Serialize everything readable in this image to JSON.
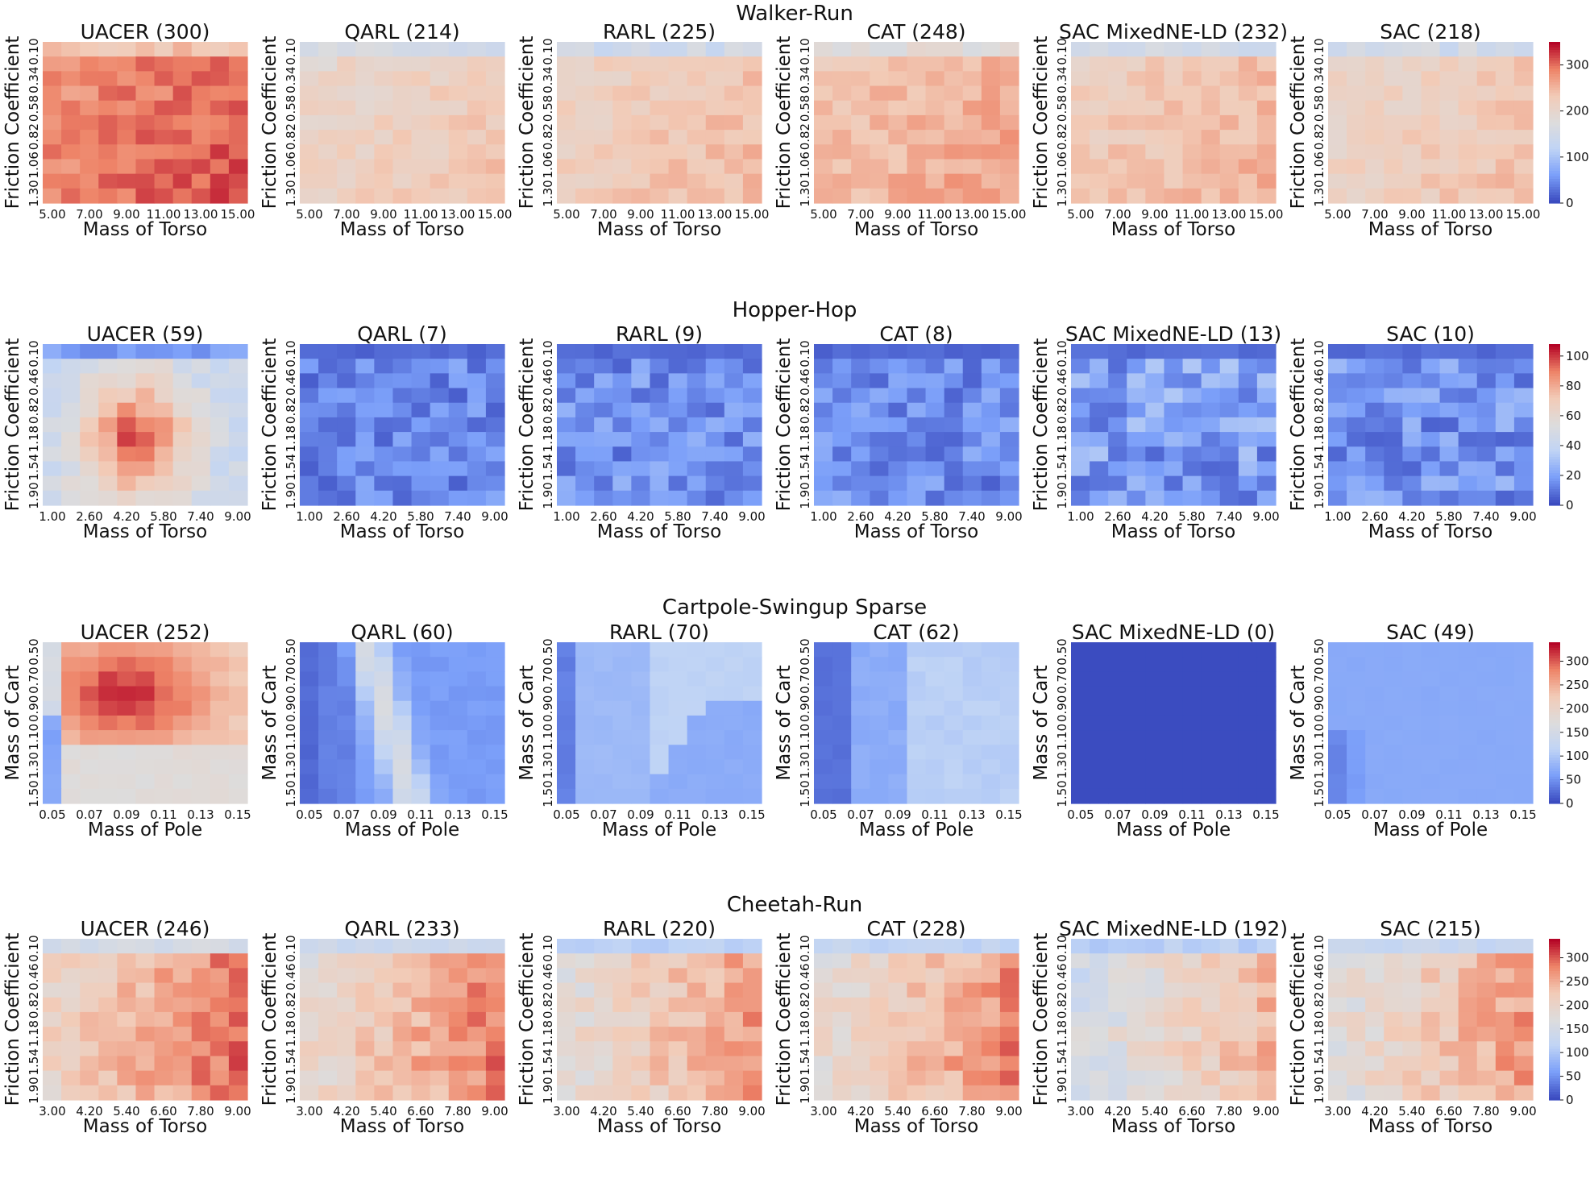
{
  "chart_data": {
    "type": "heatmap",
    "colormap": "coolwarm",
    "colormap_stops": [
      "#3b4cc0",
      "#7b9ff9",
      "#c0d4f5",
      "#dddcdc",
      "#f2cbb7",
      "#ee8468",
      "#b40426"
    ],
    "rows": [
      {
        "title": "Walker-Run",
        "ylabel": "Friction Coefficient",
        "xlabel": "Mass of Torso",
        "xticks": [
          "5.00",
          "7.00",
          "9.00",
          "11.00",
          "13.00",
          "15.00"
        ],
        "yticks": [
          "0.10",
          "0.34",
          "0.58",
          "0.82",
          "1.06",
          "1.30"
        ],
        "vmin": 0,
        "vmax": 350,
        "cbar_ticks": [
          0,
          100,
          200,
          300
        ],
        "grid": [
          11,
          11
        ],
        "panels": [
          {
            "title": "UACER (300)",
            "mean": 300,
            "base": 290,
            "top": 240,
            "pattern": "torso"
          },
          {
            "title": "QARL (214)",
            "mean": 214,
            "base": 212,
            "top": 155,
            "pattern": "torso"
          },
          {
            "title": "RARL (225)",
            "mean": 225,
            "base": 224,
            "top": 145,
            "pattern": "torso"
          },
          {
            "title": "CAT (248)",
            "mean": 248,
            "base": 245,
            "top": 180,
            "pattern": "torso"
          },
          {
            "title": "SAC MixedNE-LD (232)",
            "mean": 232,
            "base": 230,
            "top": 150,
            "pattern": "torso"
          },
          {
            "title": "SAC (218)",
            "mean": 218,
            "base": 216,
            "top": 150,
            "pattern": "torso"
          }
        ]
      },
      {
        "title": "Hopper-Hop",
        "ylabel": "Friction Coefficient",
        "xlabel": "Mass of Torso",
        "xticks": [
          "1.00",
          "2.60",
          "4.20",
          "5.80",
          "7.40",
          "9.00"
        ],
        "yticks": [
          "0.10",
          "0.46",
          "0.82",
          "1.18",
          "1.54",
          "1.90"
        ],
        "vmin": 0,
        "vmax": 108,
        "cbar_ticks": [
          0,
          20,
          40,
          60,
          80,
          100
        ],
        "grid": [
          11,
          11
        ],
        "panels": [
          {
            "title": "UACER (59)",
            "mean": 59,
            "base": 64,
            "top": 25,
            "pattern": "blob"
          },
          {
            "title": "QARL (7)",
            "mean": 7,
            "base": 13,
            "top": 10,
            "pattern": "noise"
          },
          {
            "title": "RARL (9)",
            "mean": 9,
            "base": 15,
            "top": 11,
            "pattern": "noise"
          },
          {
            "title": "CAT (8)",
            "mean": 8,
            "base": 14,
            "top": 10,
            "pattern": "noise"
          },
          {
            "title": "SAC MixedNE-LD (13)",
            "mean": 13,
            "base": 19,
            "top": 12,
            "pattern": "noise"
          },
          {
            "title": "SAC (10)",
            "mean": 10,
            "base": 16,
            "top": 11,
            "pattern": "noise"
          }
        ]
      },
      {
        "title": "Cartpole-Swingup Sparse",
        "ylabel": "Mass of Cart",
        "xlabel": "Mass of Pole",
        "xticks": [
          "0.05",
          "0.07",
          "0.09",
          "0.11",
          "0.13",
          "0.15"
        ],
        "yticks": [
          "0.50",
          "0.70",
          "0.90",
          "1.10",
          "1.30",
          "1.50"
        ],
        "vmin": 0,
        "vmax": 340,
        "cbar_ticks": [
          0,
          50,
          100,
          150,
          200,
          250,
          300
        ],
        "grid": [
          11,
          11
        ],
        "panels": [
          {
            "title": "UACER (252)",
            "mean": 252,
            "base": 252,
            "top": 252,
            "pattern": "cart-uacer"
          },
          {
            "title": "QARL (60)",
            "mean": 60,
            "base": 60,
            "top": 60,
            "pattern": "cart-band"
          },
          {
            "title": "RARL (70)",
            "mean": 70,
            "base": 70,
            "top": 70,
            "pattern": "cart-wedge"
          },
          {
            "title": "CAT (62)",
            "mean": 62,
            "base": 62,
            "top": 62,
            "pattern": "cart-split"
          },
          {
            "title": "SAC MixedNE-LD (0)",
            "mean": 0,
            "base": 0,
            "top": 0,
            "pattern": "flat"
          },
          {
            "title": "SAC (49)",
            "mean": 49,
            "base": 49,
            "top": 49,
            "pattern": "cart-sac"
          }
        ]
      },
      {
        "title": "Cheetah-Run",
        "ylabel": "Friction Coefficient",
        "xlabel": "Mass of Torso",
        "xticks": [
          "3.00",
          "4.20",
          "5.40",
          "6.60",
          "7.80",
          "9.00"
        ],
        "yticks": [
          "0.10",
          "0.46",
          "0.82",
          "1.18",
          "1.54",
          "1.90"
        ],
        "vmin": 0,
        "vmax": 340,
        "cbar_ticks": [
          0,
          50,
          100,
          150,
          200,
          250,
          300
        ],
        "grid": [
          11,
          11
        ],
        "panels": [
          {
            "title": "UACER (246)",
            "mean": 246,
            "base": 250,
            "top": 150,
            "pattern": "cheetah"
          },
          {
            "title": "QARL (233)",
            "mean": 233,
            "base": 237,
            "top": 135,
            "pattern": "cheetah"
          },
          {
            "title": "RARL (220)",
            "mean": 220,
            "base": 224,
            "top": 110,
            "pattern": "cheetah"
          },
          {
            "title": "CAT (228)",
            "mean": 228,
            "base": 232,
            "top": 120,
            "pattern": "cheetah"
          },
          {
            "title": "SAC MixedNE-LD (192)",
            "mean": 192,
            "base": 196,
            "top": 110,
            "pattern": "cheetah"
          },
          {
            "title": "SAC (215)",
            "mean": 215,
            "base": 219,
            "top": 125,
            "pattern": "cheetah"
          }
        ]
      }
    ]
  }
}
